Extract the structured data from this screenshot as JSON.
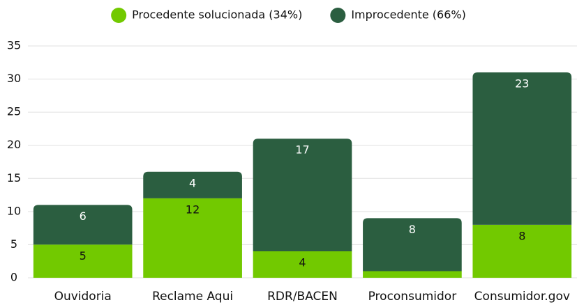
{
  "chart_data": {
    "type": "stacked_bar",
    "categories": [
      "Ouvidoria",
      "Reclame Aqui",
      "RDR/BACEN",
      "Proconsumidor",
      "Consumidor.gov"
    ],
    "series": [
      {
        "name": "Procedente solucionada (34%)",
        "color": "#72c900",
        "label_color": "#111111",
        "values": [
          5,
          12,
          4,
          1,
          8
        ]
      },
      {
        "name": "Improcedente (66%)",
        "color": "#2b5e40",
        "label_color": "#ffffff",
        "values": [
          6,
          4,
          17,
          8,
          23
        ]
      }
    ],
    "ylim": [
      0,
      35
    ],
    "yticks": [
      0,
      5,
      10,
      15,
      20,
      25,
      30,
      35
    ],
    "grid": true,
    "legend": "top"
  }
}
